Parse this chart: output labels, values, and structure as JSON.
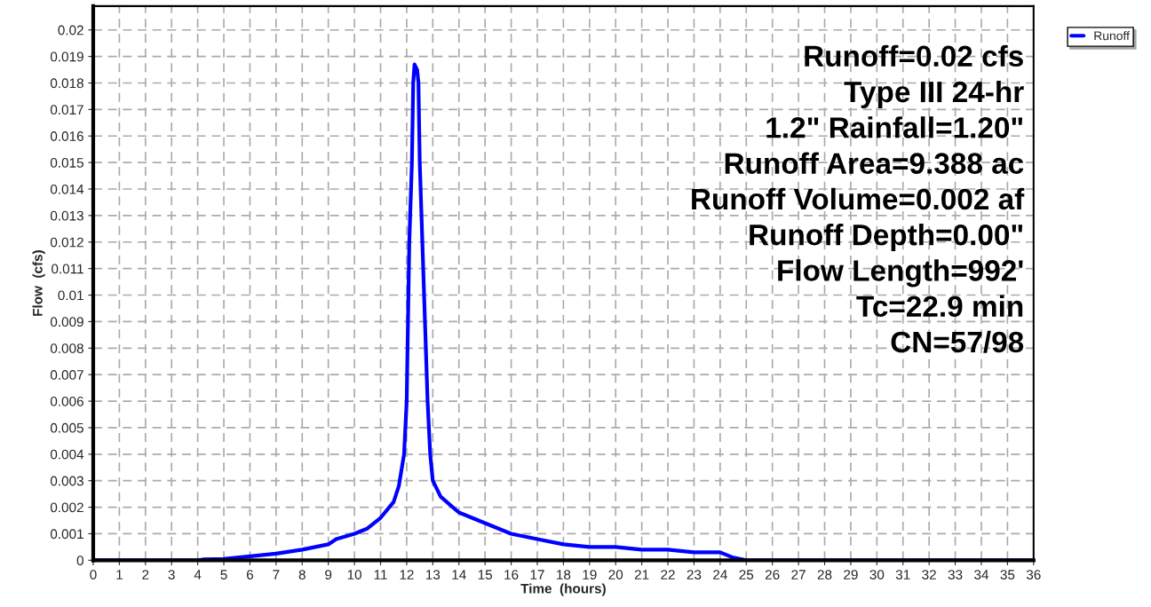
{
  "chart_data": {
    "type": "line",
    "xlabel": "Time  (hours)",
    "ylabel": "Flow  (cfs)",
    "series": [
      {
        "name": "Runoff",
        "color": "#0000ff",
        "x": [
          0,
          4,
          4.2,
          5,
          5.5,
          6,
          6.5,
          7,
          8,
          9,
          9.3,
          10,
          10.5,
          11,
          11.5,
          11.7,
          11.9,
          12.0,
          12.05,
          12.1,
          12.2,
          12.25,
          12.3,
          12.4,
          12.45,
          12.5,
          12.6,
          12.7,
          12.8,
          12.9,
          13.0,
          13.3,
          14,
          15,
          16,
          17,
          18,
          19,
          20,
          21,
          22,
          23,
          24,
          24.5,
          25,
          36
        ],
        "values": [
          0,
          0,
          3e-05,
          5e-05,
          0.0001,
          0.00015,
          0.0002,
          0.00025,
          0.0004,
          0.0006,
          0.0008,
          0.001,
          0.0012,
          0.0016,
          0.0022,
          0.0028,
          0.004,
          0.006,
          0.009,
          0.012,
          0.015,
          0.018,
          0.0187,
          0.0185,
          0.018,
          0.015,
          0.012,
          0.009,
          0.006,
          0.004,
          0.003,
          0.0024,
          0.0018,
          0.0014,
          0.001,
          0.0008,
          0.0006,
          0.0005,
          0.0005,
          0.0004,
          0.0004,
          0.0003,
          0.0003,
          0.0001,
          0,
          0
        ]
      }
    ],
    "xlim": [
      0,
      36
    ],
    "xticks": [
      0,
      1,
      2,
      3,
      4,
      5,
      6,
      7,
      8,
      9,
      10,
      11,
      12,
      13,
      14,
      15,
      16,
      17,
      18,
      19,
      20,
      21,
      22,
      23,
      24,
      25,
      26,
      27,
      28,
      29,
      30,
      31,
      32,
      33,
      34,
      35,
      36
    ],
    "ylim": [
      0,
      0.0209
    ],
    "yticks": [
      0,
      0.001,
      0.002,
      0.003,
      0.004,
      0.005,
      0.006,
      0.007,
      0.008,
      0.009,
      0.01,
      0.011,
      0.012,
      0.013,
      0.014,
      0.015,
      0.016,
      0.017,
      0.018,
      0.019,
      0.02
    ],
    "annotations": [
      "Runoff=0.02 cfs",
      "Type III 24-hr",
      "1.2\" Rainfall=1.20\"",
      "Runoff Area=9.388 ac",
      "Runoff Volume=0.002 af",
      "Runoff Depth=0.00\"",
      "Flow Length=992'",
      "Tc=22.9 min",
      "CN=57/98"
    ],
    "grid": true,
    "legend": "top right",
    "line_style": "solid",
    "marker": "none"
  }
}
